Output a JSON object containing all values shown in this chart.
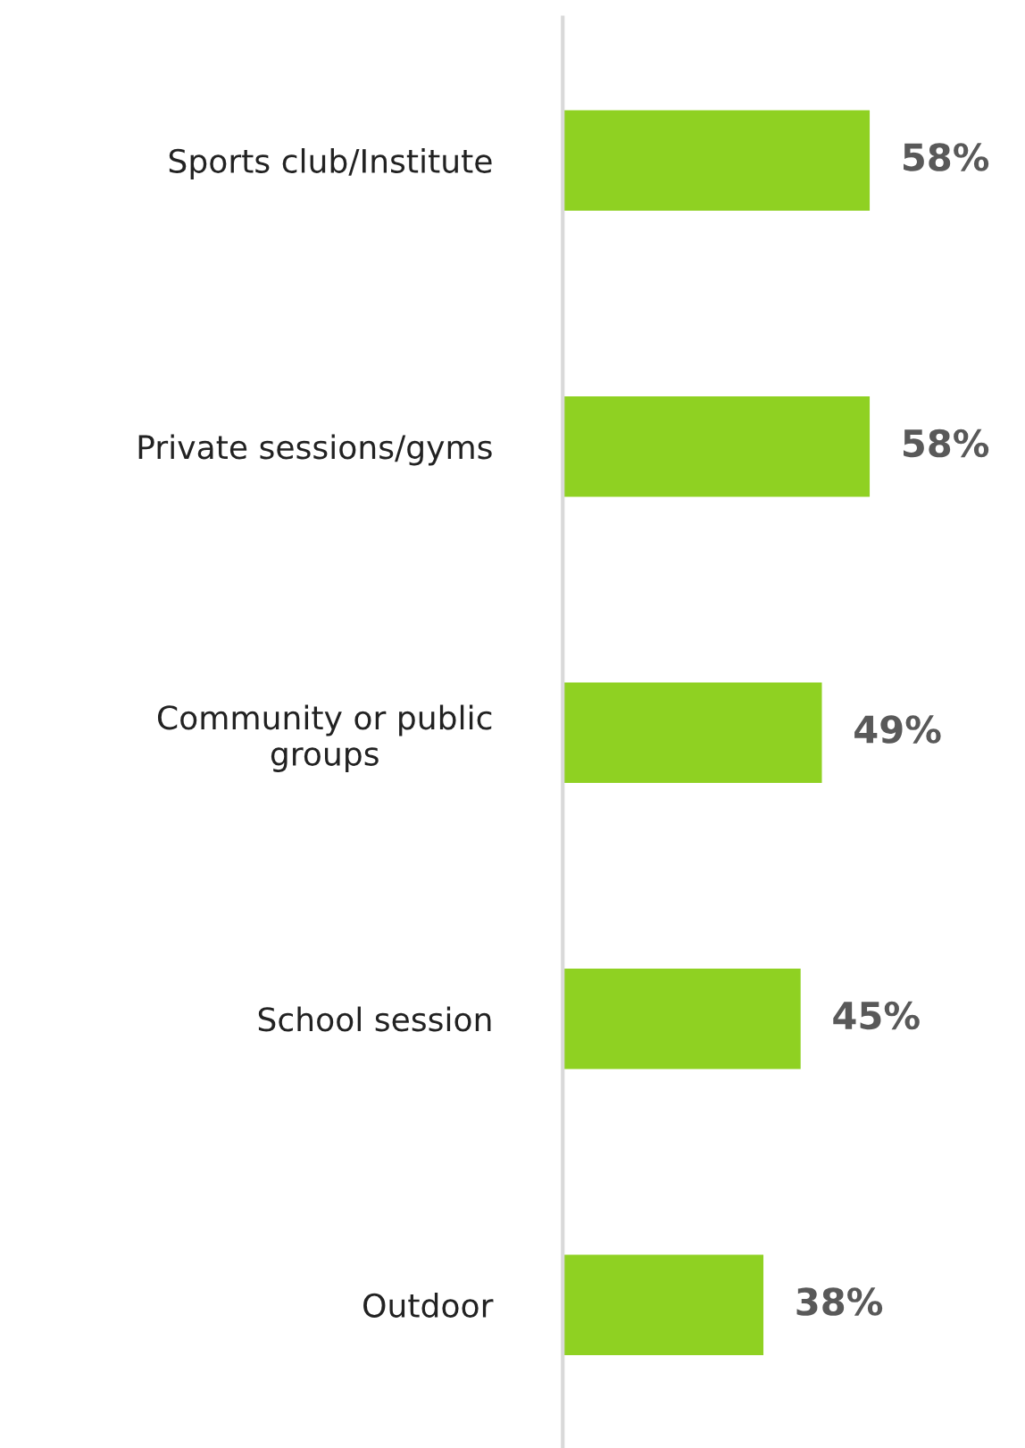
{
  "chart_data": {
    "type": "bar",
    "orientation": "horizontal",
    "categories": [
      "Sports club/Institute",
      "Private sessions/gyms",
      "Community or public\ngroups",
      "School session",
      "Outdoor"
    ],
    "values": [
      58,
      58,
      49,
      45,
      38
    ],
    "value_labels": [
      "58%",
      "58%",
      "49%",
      "45%",
      "38%"
    ],
    "color": "#8fd122",
    "grid": false,
    "legend": false,
    "tick_labels": "y"
  }
}
